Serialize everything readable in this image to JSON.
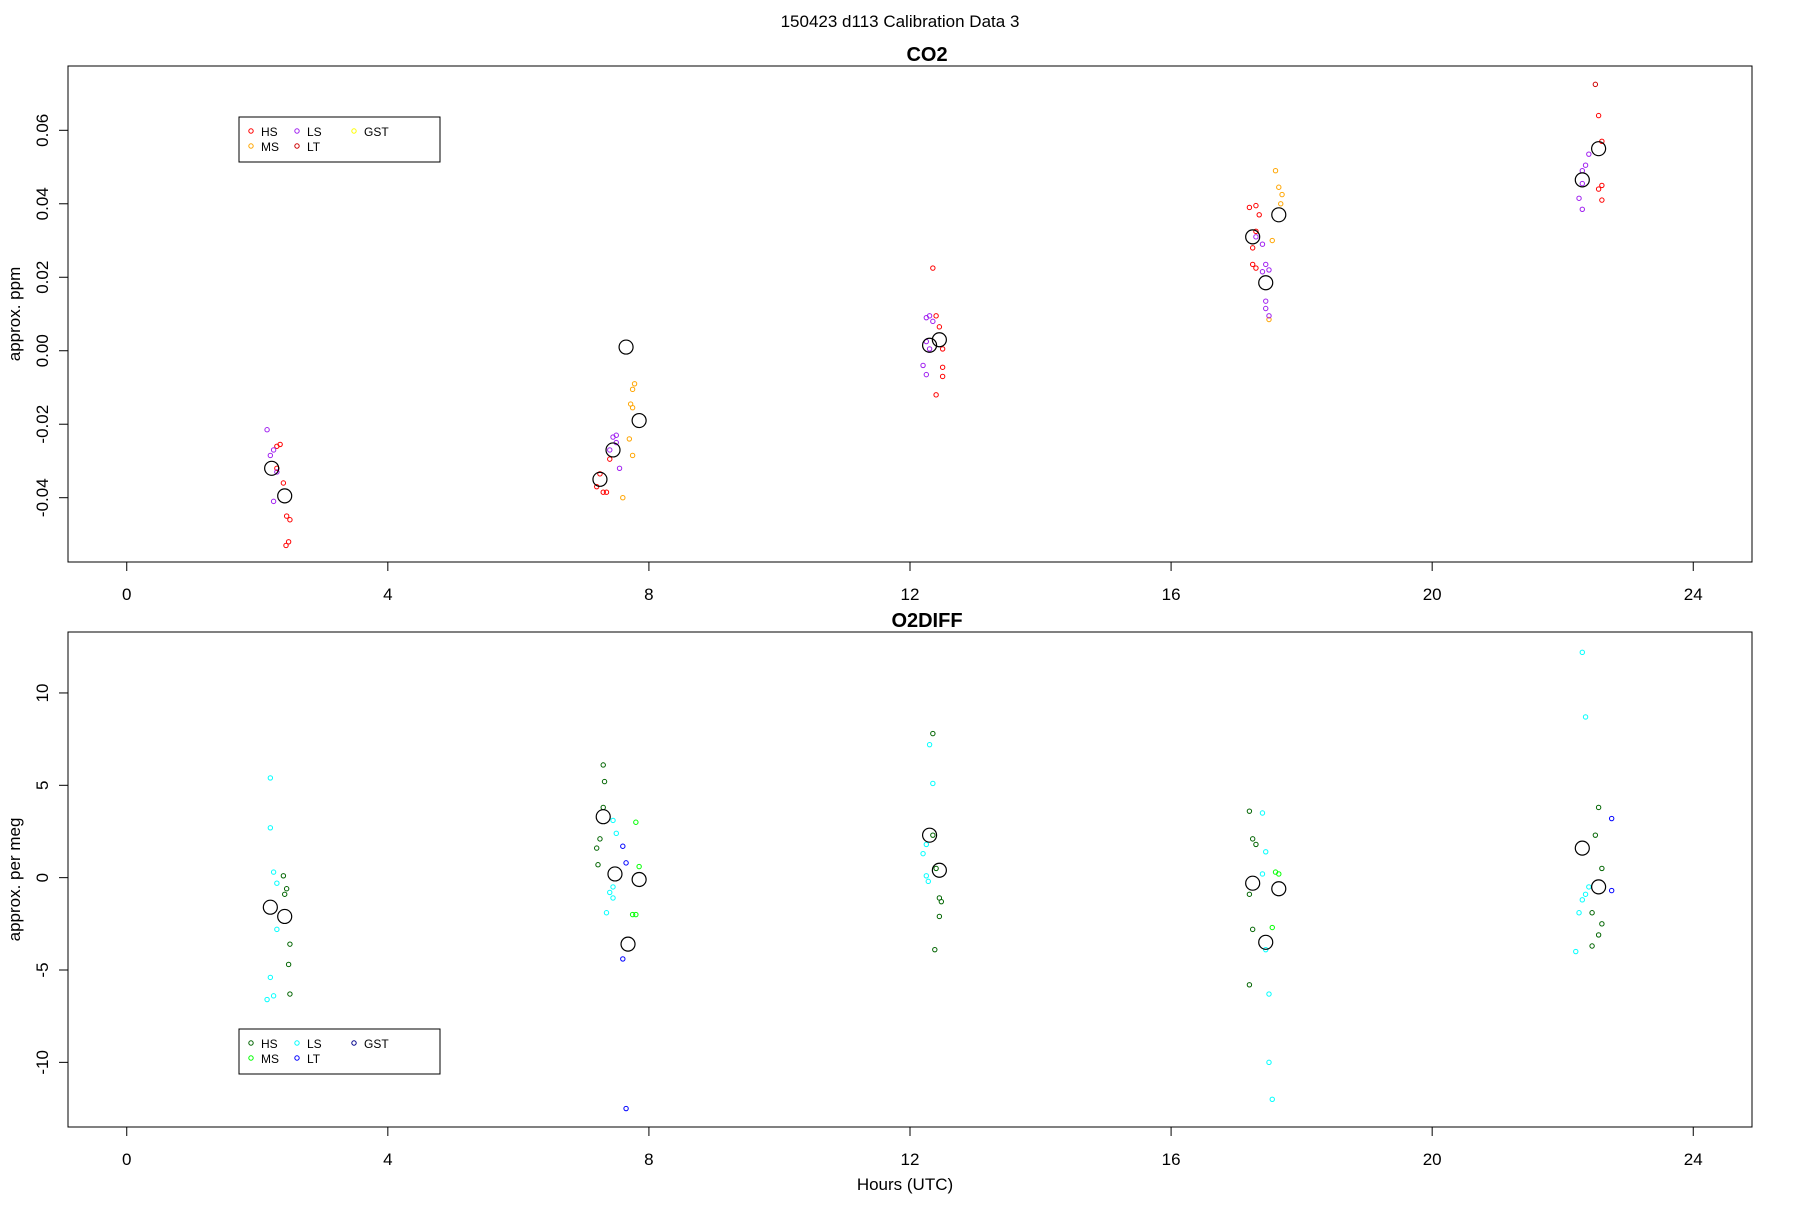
{
  "figure_title": "150423   d113   Calibration Data 3",
  "xlabel": "Hours (UTC)",
  "chart_data": [
    {
      "type": "scatter",
      "title": "CO2",
      "xlabel": "",
      "ylabel": "approx. ppm",
      "xlim": [
        -0.9,
        24.9
      ],
      "ylim": [
        -0.0575,
        0.0775
      ],
      "xticks": [
        0,
        4,
        8,
        12,
        16,
        20,
        24
      ],
      "xtick_labels": [
        "0",
        "4",
        "8",
        "12",
        "16",
        "20",
        "24"
      ],
      "yticks": [
        -0.04,
        -0.02,
        0.0,
        0.02,
        0.04,
        0.06
      ],
      "ytick_labels": [
        "-0.04",
        "-0.02",
        "0.00",
        "0.02",
        "0.04",
        "0.06"
      ],
      "legend_placement": "top-left",
      "legend": [
        {
          "name": "HS",
          "color": "#ff0000"
        },
        {
          "name": "MS",
          "color": "#ffa500"
        },
        {
          "name": "LS",
          "color": "#a020f0"
        },
        {
          "name": "LT",
          "color": "#cd0000"
        },
        {
          "name": "GST",
          "color": "#ffff00"
        }
      ],
      "series": [
        {
          "name": "HS",
          "color": "#ff0000",
          "points": [
            [
              2.3,
              -0.026
            ],
            [
              2.35,
              -0.0255
            ],
            [
              2.4,
              -0.036
            ],
            [
              2.45,
              -0.045
            ],
            [
              2.5,
              -0.046
            ],
            [
              2.48,
              -0.052
            ],
            [
              2.44,
              -0.053
            ],
            [
              2.3,
              -0.032
            ],
            [
              7.2,
              -0.037
            ],
            [
              7.25,
              -0.0335
            ],
            [
              7.3,
              -0.0385
            ],
            [
              7.35,
              -0.0385
            ],
            [
              7.4,
              -0.0295
            ],
            [
              12.35,
              0.0225
            ],
            [
              12.4,
              0.0095
            ],
            [
              12.45,
              0.0065
            ],
            [
              12.5,
              0.0005
            ],
            [
              12.5,
              -0.0045
            ],
            [
              12.5,
              -0.007
            ],
            [
              12.4,
              -0.012
            ],
            [
              17.2,
              0.039
            ],
            [
              17.3,
              0.0395
            ],
            [
              17.35,
              0.037
            ],
            [
              17.3,
              0.0325
            ],
            [
              17.25,
              0.028
            ],
            [
              17.25,
              0.0235
            ],
            [
              17.3,
              0.0225
            ],
            [
              22.55,
              0.064
            ],
            [
              22.6,
              0.057
            ],
            [
              22.6,
              0.045
            ],
            [
              22.55,
              0.044
            ],
            [
              22.6,
              0.041
            ]
          ]
        },
        {
          "name": "MS",
          "color": "#ffa500",
          "points": [
            [
              7.6,
              -0.04
            ],
            [
              7.75,
              -0.0285
            ],
            [
              7.7,
              -0.024
            ],
            [
              7.78,
              -0.009
            ],
            [
              7.75,
              -0.0105
            ],
            [
              7.72,
              -0.0145
            ],
            [
              7.75,
              -0.0155
            ],
            [
              17.6,
              0.049
            ],
            [
              17.65,
              0.0445
            ],
            [
              17.7,
              0.0425
            ],
            [
              17.68,
              0.04
            ],
            [
              17.55,
              0.03
            ],
            [
              17.5,
              0.0085
            ]
          ]
        },
        {
          "name": "LS",
          "color": "#a020f0",
          "points": [
            [
              2.15,
              -0.0215
            ],
            [
              2.2,
              -0.0285
            ],
            [
              2.25,
              -0.027
            ],
            [
              2.3,
              -0.033
            ],
            [
              2.25,
              -0.041
            ],
            [
              7.4,
              -0.027
            ],
            [
              7.45,
              -0.0235
            ],
            [
              7.5,
              -0.023
            ],
            [
              7.55,
              -0.032
            ],
            [
              7.5,
              -0.025
            ],
            [
              12.25,
              0.009
            ],
            [
              12.3,
              0.0095
            ],
            [
              12.35,
              0.008
            ],
            [
              12.25,
              0.0025
            ],
            [
              12.2,
              -0.004
            ],
            [
              12.25,
              -0.0065
            ],
            [
              12.3,
              0.0005
            ],
            [
              17.3,
              0.031
            ],
            [
              17.4,
              0.029
            ],
            [
              17.45,
              0.0235
            ],
            [
              17.5,
              0.022
            ],
            [
              17.4,
              0.0215
            ],
            [
              17.45,
              0.0135
            ],
            [
              17.45,
              0.0115
            ],
            [
              17.5,
              0.0095
            ],
            [
              22.3,
              0.049
            ],
            [
              22.35,
              0.0505
            ],
            [
              22.4,
              0.0535
            ],
            [
              22.3,
              0.0455
            ],
            [
              22.25,
              0.0415
            ],
            [
              22.3,
              0.0385
            ]
          ]
        },
        {
          "name": "LT",
          "color": "#cd0000",
          "points": [
            [
              22.5,
              0.0725
            ]
          ]
        },
        {
          "name": "GST",
          "color": "#ffff00",
          "points": []
        }
      ],
      "means": [
        [
          2.22,
          -0.032
        ],
        [
          2.42,
          -0.0395
        ],
        [
          7.25,
          -0.035
        ],
        [
          7.45,
          -0.027
        ],
        [
          7.65,
          0.001
        ],
        [
          7.85,
          -0.019
        ],
        [
          12.3,
          0.0015
        ],
        [
          12.45,
          0.003
        ],
        [
          17.25,
          0.031
        ],
        [
          17.45,
          0.0185
        ],
        [
          17.65,
          0.037
        ],
        [
          22.3,
          0.0465
        ],
        [
          22.55,
          0.055
        ]
      ]
    },
    {
      "type": "scatter",
      "title": "O2DIFF",
      "xlabel": "Hours (UTC)",
      "ylabel": "approx. per meg",
      "xlim": [
        -0.9,
        24.9
      ],
      "ylim": [
        -13.5,
        13.3
      ],
      "xticks": [
        0,
        4,
        8,
        12,
        16,
        20,
        24
      ],
      "xtick_labels": [
        "0",
        "4",
        "8",
        "12",
        "16",
        "20",
        "24"
      ],
      "yticks": [
        -10,
        -5,
        0,
        5,
        10
      ],
      "ytick_labels": [
        "-10",
        "-5",
        "0",
        "5",
        "10"
      ],
      "legend_placement": "bottom-left",
      "legend": [
        {
          "name": "HS",
          "color": "#006400"
        },
        {
          "name": "MS",
          "color": "#00ff00"
        },
        {
          "name": "LS",
          "color": "#00ffff"
        },
        {
          "name": "LT",
          "color": "#0000ff"
        },
        {
          "name": "GST",
          "color": "#00008b"
        }
      ],
      "series": [
        {
          "name": "HS",
          "color": "#006400",
          "points": [
            [
              2.4,
              0.1
            ],
            [
              2.45,
              -0.6
            ],
            [
              2.42,
              -0.9
            ],
            [
              2.5,
              -3.6
            ],
            [
              2.48,
              -4.7
            ],
            [
              2.5,
              -6.3
            ],
            [
              7.3,
              6.1
            ],
            [
              7.32,
              5.2
            ],
            [
              7.3,
              3.8
            ],
            [
              7.25,
              2.1
            ],
            [
              7.2,
              1.6
            ],
            [
              7.22,
              0.7
            ],
            [
              12.35,
              7.8
            ],
            [
              12.35,
              2.3
            ],
            [
              12.4,
              0.5
            ],
            [
              12.45,
              -1.1
            ],
            [
              12.48,
              -1.3
            ],
            [
              12.45,
              -2.1
            ],
            [
              12.38,
              -3.9
            ],
            [
              17.2,
              3.6
            ],
            [
              17.25,
              2.1
            ],
            [
              17.3,
              1.8
            ],
            [
              17.2,
              -0.9
            ],
            [
              17.25,
              -2.8
            ],
            [
              17.2,
              -5.8
            ],
            [
              22.55,
              3.8
            ],
            [
              22.5,
              2.3
            ],
            [
              22.6,
              0.5
            ],
            [
              22.45,
              -1.9
            ],
            [
              22.6,
              -2.5
            ],
            [
              22.55,
              -3.1
            ],
            [
              22.45,
              -3.7
            ]
          ]
        },
        {
          "name": "MS",
          "color": "#00ff00",
          "points": [
            [
              7.8,
              3.0
            ],
            [
              7.85,
              0.6
            ],
            [
              7.8,
              -2.0
            ],
            [
              7.75,
              -2.0
            ],
            [
              17.6,
              0.3
            ],
            [
              17.65,
              0.2
            ],
            [
              17.55,
              -2.7
            ]
          ]
        },
        {
          "name": "LS",
          "color": "#00ffff",
          "points": [
            [
              2.2,
              5.4
            ],
            [
              2.2,
              2.7
            ],
            [
              2.25,
              0.3
            ],
            [
              2.3,
              -0.3
            ],
            [
              2.3,
              -2.8
            ],
            [
              2.2,
              -5.4
            ],
            [
              2.15,
              -6.6
            ],
            [
              2.25,
              -6.4
            ],
            [
              7.45,
              3.1
            ],
            [
              7.5,
              2.4
            ],
            [
              7.45,
              -0.5
            ],
            [
              7.4,
              -0.8
            ],
            [
              7.45,
              -1.1
            ],
            [
              7.35,
              -1.9
            ],
            [
              12.3,
              7.2
            ],
            [
              12.35,
              5.1
            ],
            [
              12.25,
              1.8
            ],
            [
              12.2,
              1.3
            ],
            [
              12.25,
              0.1
            ],
            [
              12.28,
              -0.2
            ],
            [
              17.4,
              3.5
            ],
            [
              17.45,
              1.4
            ],
            [
              17.4,
              0.2
            ],
            [
              17.45,
              -3.9
            ],
            [
              17.5,
              -6.3
            ],
            [
              17.5,
              -10.0
            ],
            [
              17.55,
              -12.0
            ],
            [
              22.3,
              12.2
            ],
            [
              22.35,
              8.7
            ],
            [
              22.4,
              -0.5
            ],
            [
              22.35,
              -0.9
            ],
            [
              22.3,
              -1.2
            ],
            [
              22.25,
              -1.9
            ],
            [
              22.2,
              -4.0
            ]
          ]
        },
        {
          "name": "LT",
          "color": "#0000ff",
          "points": [
            [
              7.6,
              1.7
            ],
            [
              7.65,
              0.8
            ],
            [
              7.6,
              -4.4
            ],
            [
              7.65,
              -12.5
            ],
            [
              22.75,
              3.2
            ],
            [
              22.75,
              -0.7
            ]
          ]
        },
        {
          "name": "GST",
          "color": "#00008b",
          "points": []
        }
      ],
      "means": [
        [
          2.2,
          -1.6
        ],
        [
          2.42,
          -2.1
        ],
        [
          7.3,
          3.3
        ],
        [
          7.48,
          0.2
        ],
        [
          7.68,
          -3.6
        ],
        [
          7.85,
          -0.1
        ],
        [
          12.3,
          2.3
        ],
        [
          12.45,
          0.4
        ],
        [
          17.25,
          -0.3
        ],
        [
          17.45,
          -3.5
        ],
        [
          17.65,
          -0.6
        ],
        [
          22.3,
          1.6
        ],
        [
          22.55,
          -0.5
        ]
      ]
    }
  ]
}
